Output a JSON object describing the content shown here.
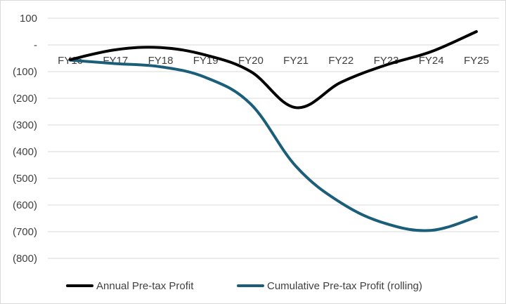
{
  "chart_data": {
    "type": "line",
    "title": "",
    "xlabel": "",
    "ylabel": "",
    "categories": [
      "FY16",
      "FY17",
      "FY18",
      "FY19",
      "FY20",
      "FY21",
      "FY22",
      "FY23",
      "FY24",
      "FY25"
    ],
    "y_ticks": [
      100,
      0,
      -100,
      -200,
      -300,
      -400,
      -500,
      -600,
      -700,
      -800
    ],
    "y_tick_labels": [
      "100",
      "-",
      "(100)",
      "(200)",
      "(300)",
      "(400)",
      "(500)",
      "(600)",
      "(700)",
      "(800)"
    ],
    "ylim": [
      -800,
      100
    ],
    "grid": true,
    "legend_position": "bottom",
    "series": [
      {
        "name": "Annual Pre-tax Profit",
        "color": "#000000",
        "values": [
          -55,
          -18,
          -10,
          -38,
          -100,
          -235,
          -140,
          -75,
          -25,
          50
        ]
      },
      {
        "name": "Cumulative Pre-tax Profit (rolling)",
        "color": "#1b5e7a",
        "values": [
          -57,
          -70,
          -82,
          -122,
          -222,
          -455,
          -592,
          -670,
          -695,
          -645
        ]
      }
    ]
  }
}
